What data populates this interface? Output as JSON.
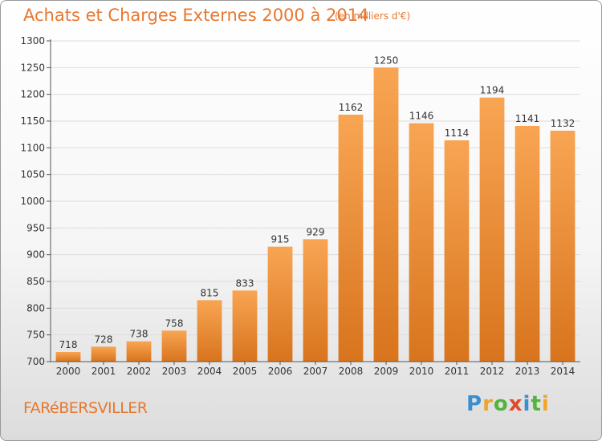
{
  "header": {
    "title": "Achats et Charges Externes 2000 à 2014",
    "unit": "(en milliers d'€)"
  },
  "footer": {
    "commune": "FARéBERSVILLER",
    "logo": "Proxiti",
    "logo_letters": [
      "P",
      "r",
      "o",
      "x",
      "i",
      "t",
      "i"
    ],
    "logo_colors": [
      "#3a8fd0",
      "#f0a52a",
      "#54b43c",
      "#e04a2a",
      "#3a8fd0",
      "#54b43c",
      "#f0a52a"
    ]
  },
  "chart_data": {
    "type": "bar",
    "title": "Achats et Charges Externes 2000 à 2014",
    "subtitle": "(en milliers d'€)",
    "xlabel": "",
    "ylabel": "",
    "categories": [
      "2000",
      "2001",
      "2002",
      "2003",
      "2004",
      "2005",
      "2006",
      "2007",
      "2008",
      "2009",
      "2010",
      "2011",
      "2012",
      "2013",
      "2014"
    ],
    "values": [
      718,
      728,
      738,
      758,
      815,
      833,
      915,
      929,
      1162,
      1250,
      1146,
      1114,
      1194,
      1141,
      1132
    ],
    "ylim": [
      700,
      1300
    ],
    "yticks": [
      700,
      750,
      800,
      850,
      900,
      950,
      1000,
      1050,
      1100,
      1150,
      1200,
      1250,
      1300
    ],
    "grid": true,
    "bar_color_top": "#f8a553",
    "bar_color_bottom": "#d8741d"
  }
}
